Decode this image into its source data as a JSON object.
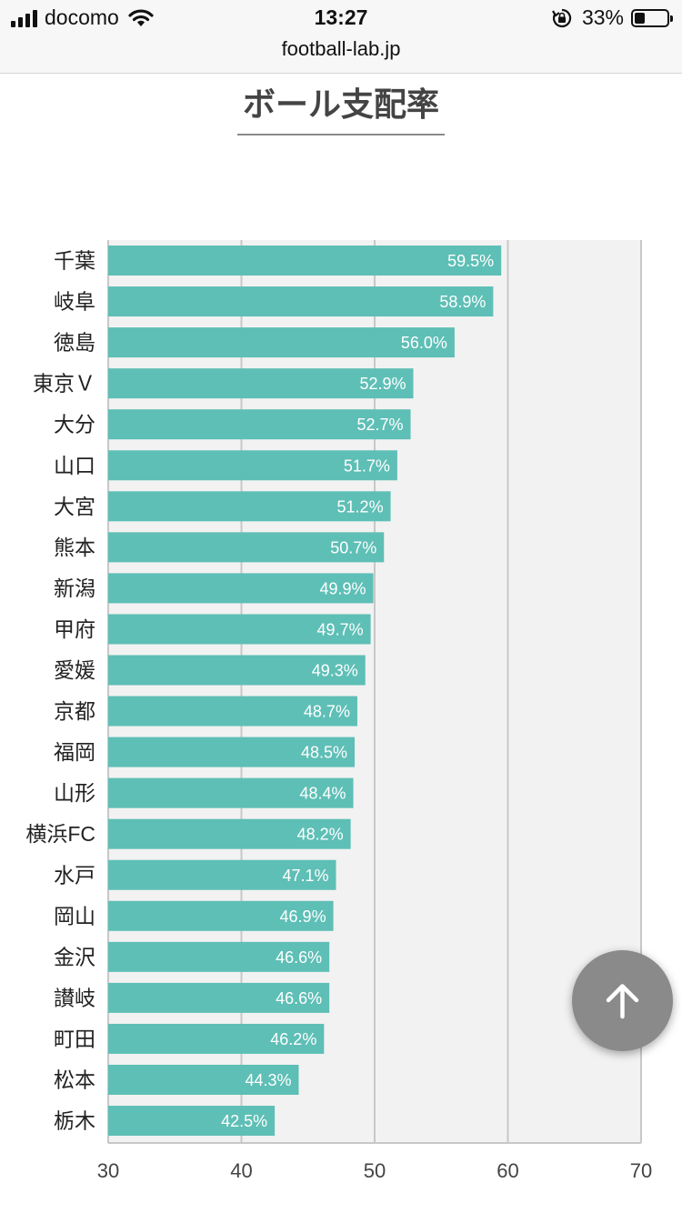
{
  "status_bar": {
    "carrier": "docomo",
    "time": "13:27",
    "battery_percent": "33%",
    "battery_level": 0.33,
    "icons": [
      "signal-icon",
      "wifi-icon",
      "rotation-lock-icon",
      "battery-icon"
    ]
  },
  "browser": {
    "url": "football-lab.jp"
  },
  "page": {
    "title": "ボール支配率"
  },
  "colors": {
    "bar": "#5ebfb6",
    "plot_background": "#f2f2f2",
    "grid": "#c8c8c8",
    "scroll_button": "#8a8a8a"
  },
  "chart_data": {
    "type": "bar",
    "orientation": "horizontal",
    "categories": [
      "千葉",
      "岐阜",
      "徳島",
      "東京Ｖ",
      "大分",
      "山口",
      "大宮",
      "熊本",
      "新潟",
      "甲府",
      "愛媛",
      "京都",
      "福岡",
      "山形",
      "横浜FC",
      "水戸",
      "岡山",
      "金沢",
      "讃岐",
      "町田",
      "松本",
      "栃木"
    ],
    "values": [
      59.5,
      58.9,
      56.0,
      52.9,
      52.7,
      51.7,
      51.2,
      50.7,
      49.9,
      49.7,
      49.3,
      48.7,
      48.5,
      48.4,
      48.2,
      47.1,
      46.9,
      46.6,
      46.6,
      46.2,
      44.3,
      42.5
    ],
    "data_labels": [
      "59.5%",
      "58.9%",
      "56.0%",
      "52.9%",
      "52.7%",
      "51.7%",
      "51.2%",
      "50.7%",
      "49.9%",
      "49.7%",
      "49.3%",
      "48.7%",
      "48.5%",
      "48.4%",
      "48.2%",
      "47.1%",
      "46.9%",
      "46.6%",
      "46.6%",
      "46.2%",
      "44.3%",
      "42.5%"
    ],
    "xlim": [
      30,
      70
    ],
    "xticks": [
      30,
      40,
      50,
      60,
      70
    ],
    "grid": true,
    "title": "",
    "xlabel": "",
    "ylabel": ""
  },
  "scroll_top": {
    "icon": "arrow-up-icon"
  }
}
